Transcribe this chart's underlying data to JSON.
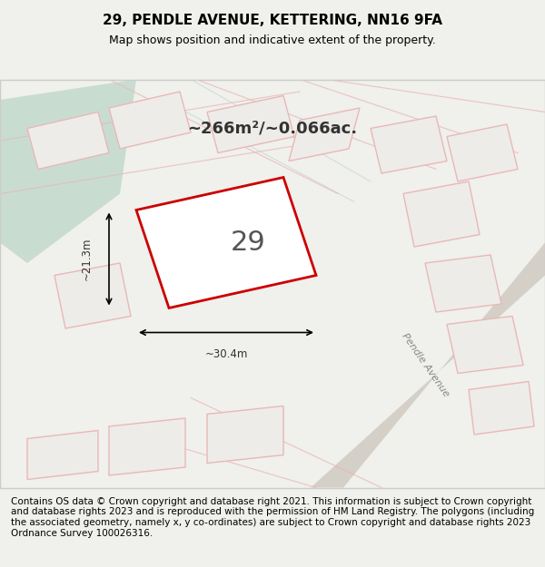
{
  "title": "29, PENDLE AVENUE, KETTERING, NN16 9FA",
  "subtitle": "Map shows position and indicative extent of the property.",
  "area_text": "~266m²/~0.066ac.",
  "property_number": "29",
  "dim_width": "~30.4m",
  "dim_height": "~21.3m",
  "footer_text": "Contains OS data © Crown copyright and database right 2021. This information is subject to Crown copyright and database rights 2023 and is reproduced with the permission of HM Land Registry. The polygons (including the associated geometry, namely x, y co-ordinates) are subject to Crown copyright and database rights 2023 Ordnance Survey 100026316.",
  "bg_color": "#f0f0ec",
  "map_bg": "#f5f5f0",
  "green_area_color": "#c8ddd0",
  "building_fill": "#f0eeea",
  "building_edge": "#e8c0c0",
  "road_color": "#d8d4cc",
  "main_plot_edge": "#cc0000",
  "main_plot_fill": "#ffffff",
  "street_label": "Pendle Avenue",
  "title_fontsize": 11,
  "subtitle_fontsize": 9,
  "footer_fontsize": 7.5
}
